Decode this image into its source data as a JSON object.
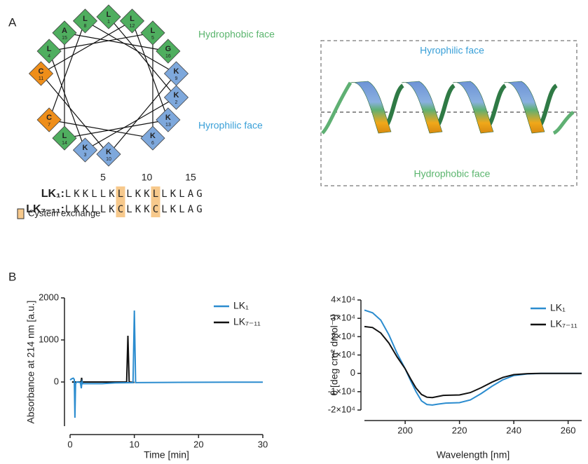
{
  "panel_labels": [
    "A",
    "B"
  ],
  "faces": {
    "hydrophobic": "Hydrophobic face",
    "hydrophilic": "Hyrophilic face"
  },
  "helical_wheel": {
    "nodes": [
      {
        "residue": "L",
        "number": "1",
        "color": "#4fae5f"
      },
      {
        "residue": "K",
        "number": "2",
        "color": "#7ea8dc"
      },
      {
        "residue": "K",
        "number": "3",
        "color": "#7ea8dc"
      },
      {
        "residue": "L",
        "number": "4",
        "color": "#4fae5f"
      },
      {
        "residue": "L",
        "number": "5",
        "color": "#4fae5f"
      },
      {
        "residue": "K",
        "number": "6",
        "color": "#7ea8dc"
      },
      {
        "residue": "C",
        "number": "7",
        "color": "#ee8e1a"
      },
      {
        "residue": "L",
        "number": "8",
        "color": "#4fae5f"
      },
      {
        "residue": "K",
        "number": "9",
        "color": "#7ea8dc"
      },
      {
        "residue": "K",
        "number": "10",
        "color": "#7ea8dc"
      },
      {
        "residue": "C",
        "number": "11",
        "color": "#ee8e1a"
      },
      {
        "residue": "L",
        "number": "12",
        "color": "#4fae5f"
      },
      {
        "residue": "K",
        "number": "13",
        "color": "#7ea8dc"
      },
      {
        "residue": "L",
        "number": "14",
        "color": "#4fae5f"
      },
      {
        "residue": "A",
        "number": "15",
        "color": "#4fae5f"
      },
      {
        "residue": "G",
        "number": "16",
        "color": "#4fae5f"
      }
    ]
  },
  "sequence_ticks": [
    5,
    10,
    15
  ],
  "sequences": [
    {
      "name": "LK₁:",
      "residues": [
        "L",
        "K",
        "K",
        "L",
        "L",
        "K",
        "L",
        "L",
        "K",
        "K",
        "L",
        "L",
        "K",
        "L",
        "A",
        "G"
      ]
    },
    {
      "name": "LK₇₋₁₁:",
      "residues": [
        "L",
        "K",
        "K",
        "L",
        "L",
        "K",
        "C",
        "L",
        "K",
        "K",
        "C",
        "L",
        "K",
        "L",
        "A",
        "G"
      ]
    }
  ],
  "exchange_positions": [
    7,
    11
  ],
  "exchange_color": "#f7c98c",
  "exchange_legend": "Cystein exchange",
  "chart_data": [
    {
      "type": "line",
      "xlabel": "Time [min]",
      "ylabel": "Absorbance at 214 nm [a.u.]",
      "xlim": [
        0,
        30
      ],
      "ylim": [
        -1050,
        2000
      ],
      "xticks": [
        0,
        10,
        20,
        30
      ],
      "yticks": [
        0,
        1000,
        2000
      ],
      "series": [
        {
          "name": "LK₇₋₁₁",
          "color": "#111111",
          "x": [
            0.3,
            1.7,
            1.8,
            1.9,
            2.0,
            8.8,
            9.0,
            9.2,
            10.0
          ],
          "values": [
            0,
            0,
            100,
            -50,
            0,
            0,
            1100,
            0,
            -10
          ]
        },
        {
          "name": "LK₁",
          "color": "#2b8ccf",
          "x": [
            0,
            0.3,
            0.5,
            0.65,
            0.75,
            0.85,
            1.0,
            1.6,
            1.75,
            1.85,
            2.0,
            5,
            7,
            9.8,
            10.0,
            10.2,
            15,
            25,
            30
          ],
          "values": [
            50,
            80,
            90,
            60,
            -850,
            -50,
            0,
            -10,
            -150,
            10,
            -40,
            -40,
            -20,
            -15,
            1700,
            -15,
            -10,
            -5,
            -5
          ]
        }
      ]
    },
    {
      "type": "line",
      "xlabel": "Wavelength [nm]",
      "ylabel": "θ [deg cm² dmol⁻¹]",
      "xlim": [
        185,
        265
      ],
      "ylim": [
        -20000,
        40000
      ],
      "xticks": [
        200,
        220,
        240,
        260
      ],
      "yticks": [
        {
          "value": -20000,
          "label": "-2×10⁴"
        },
        {
          "value": -10000,
          "label": "-1×10⁴"
        },
        0,
        {
          "value": 10000,
          "label": "1×10⁴"
        },
        {
          "value": 20000,
          "label": "2×10⁴"
        },
        {
          "value": 30000,
          "label": "3×10⁴"
        },
        {
          "value": 40000,
          "label": "4×10⁴"
        }
      ],
      "series": [
        {
          "name": "LK₁",
          "color": "#2b8ccf",
          "x": [
            185,
            188,
            191,
            194,
            197,
            200,
            202,
            204,
            206,
            208,
            210,
            212,
            215,
            220,
            224,
            228,
            232,
            236,
            240,
            245,
            250,
            265
          ],
          "values": [
            34500,
            33000,
            29000,
            21000,
            11000,
            2500,
            -4000,
            -10000,
            -15000,
            -17000,
            -17300,
            -16800,
            -16200,
            -16000,
            -14500,
            -11000,
            -7000,
            -3500,
            -1200,
            -300,
            0,
            0
          ]
        },
        {
          "name": "LK₇₋₁₁",
          "color": "#111111",
          "x": [
            185,
            188,
            191,
            194,
            197,
            200,
            202,
            204,
            206,
            208,
            210,
            214,
            220,
            224,
            228,
            232,
            236,
            240,
            245,
            250,
            265
          ],
          "values": [
            25500,
            25000,
            22000,
            16500,
            9000,
            2500,
            -3000,
            -8000,
            -11500,
            -13000,
            -13200,
            -12000,
            -11800,
            -10500,
            -7800,
            -4800,
            -2200,
            -700,
            -150,
            0,
            0
          ]
        }
      ]
    }
  ]
}
